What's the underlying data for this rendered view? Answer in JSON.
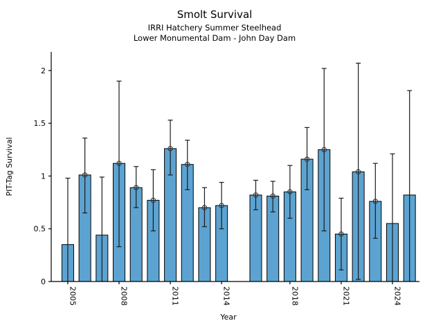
{
  "header": {
    "title": "Smolt Survival",
    "subtitle1": "IRRI Hatchery Summer Steelhead",
    "subtitle2": "Lower Monumental Dam - John Day Dam"
  },
  "chart_data": {
    "type": "bar",
    "title": "Smolt Survival",
    "subtitles": [
      "IRRI Hatchery Summer Steelhead",
      "Lower Monumental Dam - John Day Dam"
    ],
    "xlabel": "Year",
    "ylabel": "PIT-Tag Survival",
    "xlim": [
      2004.03,
      2025.58
    ],
    "ylim": [
      0,
      2.177
    ],
    "yticks": [
      0,
      0.5,
      1,
      1.5,
      2
    ],
    "ytick_labels": [
      "0",
      "0.5",
      "1",
      "1.5",
      "2"
    ],
    "xticks": [
      2005,
      2008,
      2011,
      2014,
      2018,
      2021,
      2024
    ],
    "grid": false,
    "legend": "none",
    "bar_color": "#5CA3D1",
    "bar_edge_color": "#000000",
    "error_bar_color": "#1a1a1a",
    "marker_style": "open-circle",
    "bars": [
      {
        "year": 2005,
        "value": 0.35,
        "err_low": 0.0,
        "err_high": 0.98,
        "marker": false
      },
      {
        "year": 2006,
        "value": 1.01,
        "err_low": 0.65,
        "err_high": 1.36,
        "marker": true
      },
      {
        "year": 2007,
        "value": 0.44,
        "err_low": 0.0,
        "err_high": 0.99,
        "marker": false
      },
      {
        "year": 2008,
        "value": 1.12,
        "err_low": 0.33,
        "err_high": 1.9,
        "marker": true
      },
      {
        "year": 2009,
        "value": 0.89,
        "err_low": 0.7,
        "err_high": 1.09,
        "marker": true
      },
      {
        "year": 2010,
        "value": 0.77,
        "err_low": 0.48,
        "err_high": 1.06,
        "marker": true
      },
      {
        "year": 2011,
        "value": 1.26,
        "err_low": 1.01,
        "err_high": 1.53,
        "marker": true
      },
      {
        "year": 2012,
        "value": 1.11,
        "err_low": 0.87,
        "err_high": 1.34,
        "marker": true
      },
      {
        "year": 2013,
        "value": 0.7,
        "err_low": 0.52,
        "err_high": 0.89,
        "marker": true
      },
      {
        "year": 2014,
        "value": 0.72,
        "err_low": 0.5,
        "err_high": 0.94,
        "marker": true
      },
      {
        "year": 2016,
        "value": 0.82,
        "err_low": 0.68,
        "err_high": 0.96,
        "marker": true
      },
      {
        "year": 2017,
        "value": 0.81,
        "err_low": 0.66,
        "err_high": 0.95,
        "marker": true
      },
      {
        "year": 2018,
        "value": 0.85,
        "err_low": 0.6,
        "err_high": 1.1,
        "marker": true
      },
      {
        "year": 2019,
        "value": 1.16,
        "err_low": 0.87,
        "err_high": 1.46,
        "marker": true
      },
      {
        "year": 2020,
        "value": 1.25,
        "err_low": 0.48,
        "err_high": 2.02,
        "marker": true
      },
      {
        "year": 2021,
        "value": 0.45,
        "err_low": 0.11,
        "err_high": 0.79,
        "marker": true
      },
      {
        "year": 2022,
        "value": 1.04,
        "err_low": 0.02,
        "err_high": 2.07,
        "marker": true
      },
      {
        "year": 2023,
        "value": 0.76,
        "err_low": 0.41,
        "err_high": 1.12,
        "marker": true
      },
      {
        "year": 2024,
        "value": 0.55,
        "err_low": 0.0,
        "err_high": 1.21,
        "marker": false
      },
      {
        "year": 2025,
        "value": 0.82,
        "err_low": 0.0,
        "err_high": 1.81,
        "marker": false
      }
    ]
  }
}
